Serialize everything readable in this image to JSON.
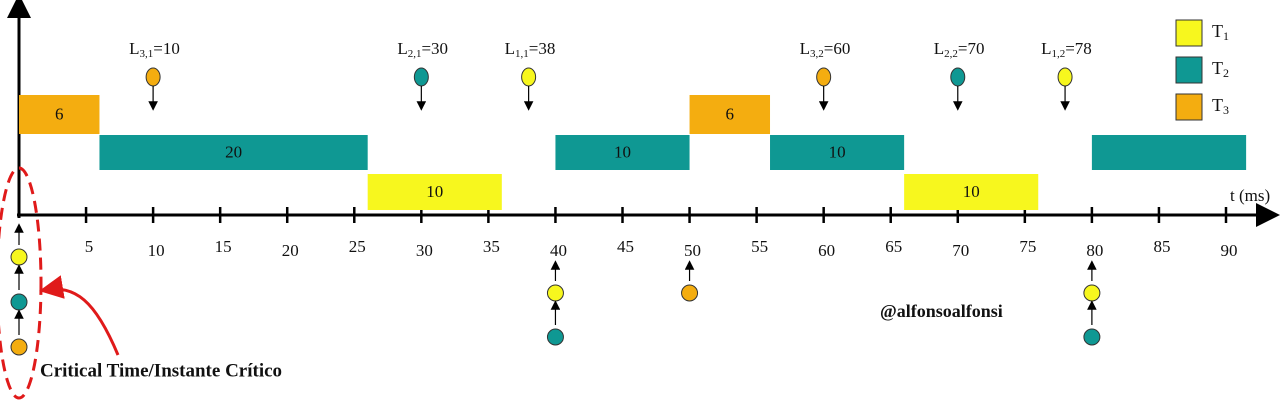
{
  "axis": {
    "label": "t (ms)",
    "xlim": [
      0,
      90
    ],
    "xticks": [
      5,
      10,
      15,
      20,
      25,
      30,
      35,
      40,
      45,
      50,
      55,
      60,
      65,
      70,
      75,
      80,
      85,
      90
    ]
  },
  "tasks": [
    {
      "name": "T",
      "sub": "1",
      "color": "#f7f71e"
    },
    {
      "name": "T",
      "sub": "2",
      "color": "#0f9893"
    },
    {
      "name": "T",
      "sub": "3",
      "color": "#f4ad10"
    }
  ],
  "segments": [
    {
      "task": 3,
      "start": 0,
      "end": 6,
      "label": 6
    },
    {
      "task": 2,
      "start": 6,
      "end": 26,
      "label": 20
    },
    {
      "task": 1,
      "start": 26,
      "end": 36,
      "label": 10
    },
    {
      "task": 2,
      "start": 40,
      "end": 50,
      "label": 10
    },
    {
      "task": 3,
      "start": 50,
      "end": 56,
      "label": 6
    },
    {
      "task": 2,
      "start": 56,
      "end": 66,
      "label": 10
    },
    {
      "task": 1,
      "start": 66,
      "end": 76,
      "label": 10
    },
    {
      "task": 2,
      "start": 80,
      "end": 91.5
    }
  ],
  "deadlines": [
    {
      "task": 3,
      "name": "L",
      "sub": "3,1",
      "at": 10,
      "label": "=10"
    },
    {
      "task": 2,
      "name": "L",
      "sub": "2,1",
      "at": 30,
      "label": "=30"
    },
    {
      "task": 1,
      "name": "L",
      "sub": "1,1",
      "at": 38,
      "label": "=38"
    },
    {
      "task": 3,
      "name": "L",
      "sub": "3,2",
      "at": 60,
      "label": "=60"
    },
    {
      "task": 2,
      "name": "L",
      "sub": "2,2",
      "at": 70,
      "label": "=70"
    },
    {
      "task": 1,
      "name": "L",
      "sub": "1,2",
      "at": 78,
      "label": "=78"
    }
  ],
  "arrivals": [
    {
      "at": 0,
      "tasks": [
        1,
        2,
        3
      ]
    },
    {
      "at": 40,
      "tasks": [
        1,
        2
      ]
    },
    {
      "at": 50,
      "tasks": [
        3
      ]
    },
    {
      "at": 80,
      "tasks": [
        1,
        2
      ]
    }
  ],
  "annotation": "Critical Time/Instante Crítico",
  "credit": "@alfonsoalfonsi"
}
